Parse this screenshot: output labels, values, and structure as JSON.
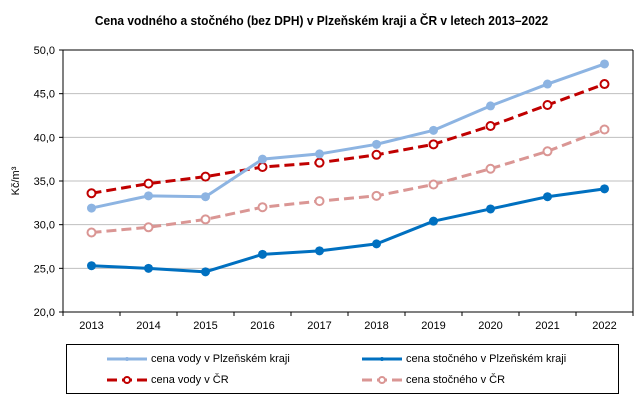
{
  "chart_data": {
    "type": "line",
    "title": "Cena vodného a stočného (bez DPH) v Plzeňském kraji a ČR v letech 2013–2022",
    "xlabel": "",
    "ylabel": "Kč/m³",
    "ylim": [
      20.0,
      50.0
    ],
    "yticks": [
      "20,0",
      "25,0",
      "30,0",
      "35,0",
      "40,0",
      "45,0",
      "50,0"
    ],
    "ytick_values": [
      20,
      25,
      30,
      35,
      40,
      45,
      50
    ],
    "categories": [
      "2013",
      "2014",
      "2015",
      "2016",
      "2017",
      "2018",
      "2019",
      "2020",
      "2021",
      "2022"
    ],
    "grid": "horizontal",
    "legend_position": "bottom",
    "series": [
      {
        "name": "cena vody v Plzeňském kraji",
        "color": "#8DB4E2",
        "style": "solid",
        "marker": "filled-circle",
        "values": [
          31.9,
          33.3,
          33.2,
          37.5,
          38.1,
          39.2,
          40.8,
          43.6,
          46.1,
          48.4
        ]
      },
      {
        "name": "cena stočného v Plzeňském kraji",
        "color": "#0070C0",
        "style": "solid",
        "marker": "filled-circle",
        "values": [
          25.3,
          25.0,
          24.6,
          26.6,
          27.0,
          27.8,
          30.4,
          31.8,
          33.2,
          34.1
        ]
      },
      {
        "name": "cena vody v ČR",
        "color": "#C00000",
        "style": "dashed",
        "marker": "open-circle",
        "values": [
          33.6,
          34.7,
          35.5,
          36.6,
          37.1,
          38.0,
          39.2,
          41.3,
          43.7,
          46.1
        ]
      },
      {
        "name": "cena stočného v ČR",
        "color": "#DA9694",
        "style": "dashed",
        "marker": "open-circle",
        "values": [
          29.1,
          29.7,
          30.6,
          32.0,
          32.7,
          33.3,
          34.6,
          36.4,
          38.4,
          40.9
        ]
      }
    ]
  }
}
